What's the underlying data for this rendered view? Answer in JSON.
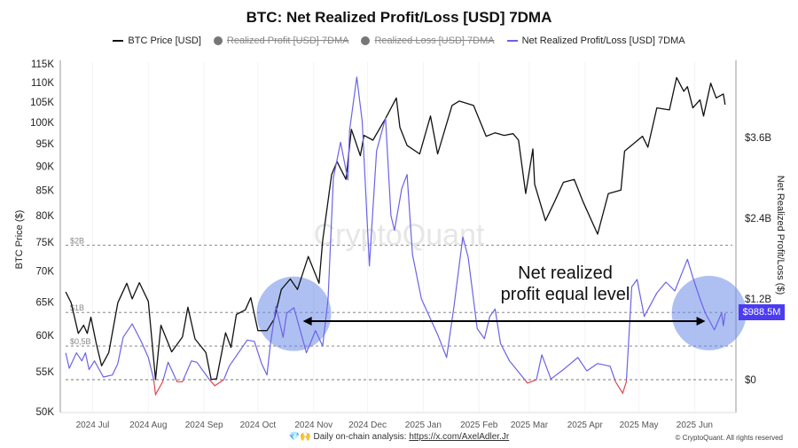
{
  "chart_data": {
    "type": "line",
    "title": "BTC: Net Realized Profit/Loss [USD] 7DMA",
    "legend": {
      "placement": "top",
      "items": [
        {
          "label": "BTC Price [USD]",
          "color": "#111111",
          "hidden": false
        },
        {
          "label": "Realized Profit [USD] 7DMA",
          "color": "#777777",
          "hidden": true
        },
        {
          "label": "Realized Loss [USD] 7DMA",
          "color": "#777777",
          "hidden": true
        },
        {
          "label": "Net Realized Profit/Loss [USD] 7DMA",
          "color": "#6b63e6",
          "hidden": false
        }
      ]
    },
    "left_axis": {
      "label": "BTC Price ($)",
      "scale": "log",
      "range": [
        50000,
        115000
      ],
      "ticks": [
        50000,
        55000,
        60000,
        65000,
        70000,
        75000,
        80000,
        85000,
        90000,
        95000,
        100000,
        105000,
        110000,
        115000
      ],
      "tick_labels": [
        "50K",
        "55K",
        "60K",
        "65K",
        "70K",
        "75K",
        "80K",
        "85K",
        "90K",
        "95K",
        "100K",
        "105K",
        "110K",
        "115K"
      ]
    },
    "right_axis": {
      "label": "Net Realized Profit/Loss ($)",
      "scale": "linear",
      "range": [
        -0.45,
        4.8
      ],
      "unit": "USD billions",
      "ticks": [
        0,
        1.2,
        2.4,
        3.6
      ],
      "tick_labels": [
        "$0",
        "$1.2B",
        "$2.4B",
        "$3.6B"
      ]
    },
    "x_axis": {
      "range": [
        "2024-06-13",
        "2025-06-24"
      ],
      "ticks": [
        "2024-07-01",
        "2024-08-01",
        "2024-09-01",
        "2024-10-01",
        "2024-11-01",
        "2024-12-01",
        "2025-01-01",
        "2025-02-01",
        "2025-03-01",
        "2025-04-01",
        "2025-05-01",
        "2025-06-01"
      ],
      "tick_labels": [
        "2024 Jul",
        "2024 Aug",
        "2024 Sep",
        "2024 Oct",
        "2024 Nov",
        "2024 Dec",
        "2025 Jan",
        "2025 Feb",
        "2025 Mar",
        "2025 Apr",
        "2025 May",
        "2025 Jun"
      ]
    },
    "reference_lines": [
      {
        "value": 2,
        "label": "$2B"
      },
      {
        "value": 1,
        "label": "$1B"
      },
      {
        "value": 0.5,
        "label": "$0,5B"
      },
      {
        "value": 0,
        "label": ""
      }
    ],
    "last_value_label": "$988.5M",
    "negative_color": "#e0454f",
    "highlight_color": "#6b8ce8",
    "highlights": [
      {
        "date": "2024-10-21",
        "value_b": 0.98
      },
      {
        "date": "2025-06-09",
        "value_b": 0.99
      }
    ],
    "annotation": {
      "line1": "Net realized",
      "line2": "profit equal level",
      "from": "2024-10-26",
      "to": "2025-06-07",
      "value_b": 1.0
    },
    "series": [
      {
        "name": "BTC Price [USD]",
        "axis": "left",
        "color": "#111111",
        "points": [
          [
            "2024-06-16",
            66600
          ],
          [
            "2024-06-19",
            64900
          ],
          [
            "2024-06-23",
            60300
          ],
          [
            "2024-06-26",
            61500
          ],
          [
            "2024-06-28",
            60300
          ],
          [
            "2024-06-30",
            62700
          ],
          [
            "2024-07-03",
            58900
          ],
          [
            "2024-07-06",
            55800
          ],
          [
            "2024-07-10",
            57600
          ],
          [
            "2024-07-15",
            64900
          ],
          [
            "2024-07-20",
            68000
          ],
          [
            "2024-07-23",
            65500
          ],
          [
            "2024-07-27",
            68100
          ],
          [
            "2024-08-01",
            65100
          ],
          [
            "2024-08-05",
            54000
          ],
          [
            "2024-08-08",
            61500
          ],
          [
            "2024-08-14",
            57700
          ],
          [
            "2024-08-20",
            59800
          ],
          [
            "2024-08-23",
            64200
          ],
          [
            "2024-08-27",
            59500
          ],
          [
            "2024-09-02",
            57600
          ],
          [
            "2024-09-05",
            54000
          ],
          [
            "2024-09-08",
            54100
          ],
          [
            "2024-09-13",
            60400
          ],
          [
            "2024-09-16",
            58300
          ],
          [
            "2024-09-19",
            63100
          ],
          [
            "2024-09-24",
            63800
          ],
          [
            "2024-09-27",
            65700
          ],
          [
            "2024-10-01",
            60700
          ],
          [
            "2024-10-06",
            60700
          ],
          [
            "2024-10-10",
            62400
          ],
          [
            "2024-10-14",
            67000
          ],
          [
            "2024-10-19",
            68700
          ],
          [
            "2024-10-23",
            67000
          ],
          [
            "2024-10-29",
            72500
          ],
          [
            "2024-11-04",
            68000
          ],
          [
            "2024-11-06",
            75300
          ],
          [
            "2024-11-11",
            88200
          ],
          [
            "2024-11-14",
            91000
          ],
          [
            "2024-11-19",
            87200
          ],
          [
            "2024-11-22",
            98300
          ],
          [
            "2024-11-27",
            92300
          ],
          [
            "2024-11-29",
            96900
          ],
          [
            "2024-12-04",
            95800
          ],
          [
            "2024-12-11",
            100900
          ],
          [
            "2024-12-17",
            106000
          ],
          [
            "2024-12-19",
            98800
          ],
          [
            "2024-12-23",
            94600
          ],
          [
            "2024-12-30",
            92700
          ],
          [
            "2025-01-05",
            101500
          ],
          [
            "2025-01-09",
            92700
          ],
          [
            "2025-01-17",
            104100
          ],
          [
            "2025-01-21",
            105200
          ],
          [
            "2025-01-29",
            104100
          ],
          [
            "2025-02-05",
            96700
          ],
          [
            "2025-02-10",
            97500
          ],
          [
            "2025-02-15",
            96900
          ],
          [
            "2025-02-20",
            97300
          ],
          [
            "2025-02-23",
            95800
          ],
          [
            "2025-02-27",
            84300
          ],
          [
            "2025-03-03",
            93800
          ],
          [
            "2025-03-04",
            86200
          ],
          [
            "2025-03-10",
            79000
          ],
          [
            "2025-03-15",
            82600
          ],
          [
            "2025-03-20",
            86600
          ],
          [
            "2025-03-26",
            87200
          ],
          [
            "2025-03-31",
            82600
          ],
          [
            "2025-04-08",
            76500
          ],
          [
            "2025-04-14",
            84300
          ],
          [
            "2025-04-21",
            85000
          ],
          [
            "2025-04-23",
            93300
          ],
          [
            "2025-05-03",
            96700
          ],
          [
            "2025-05-06",
            94200
          ],
          [
            "2025-05-11",
            103500
          ],
          [
            "2025-05-18",
            103000
          ],
          [
            "2025-05-22",
            111300
          ],
          [
            "2025-05-26",
            107700
          ],
          [
            "2025-05-28",
            108900
          ],
          [
            "2025-05-31",
            103500
          ],
          [
            "2025-06-04",
            105500
          ],
          [
            "2025-06-06",
            101500
          ],
          [
            "2025-06-10",
            109800
          ],
          [
            "2025-06-13",
            106000
          ],
          [
            "2025-06-17",
            107000
          ],
          [
            "2025-06-18",
            104300
          ]
        ]
      },
      {
        "name": "Net Realized Profit/Loss [USD] 7DMA",
        "axis": "right",
        "unit": "USD billions",
        "color": "#6b63e6",
        "points": [
          [
            "2024-06-16",
            0.4
          ],
          [
            "2024-06-18",
            0.17
          ],
          [
            "2024-06-22",
            0.4
          ],
          [
            "2024-06-25",
            0.28
          ],
          [
            "2024-06-27",
            0.4
          ],
          [
            "2024-06-29",
            0.15
          ],
          [
            "2024-07-02",
            0.28
          ],
          [
            "2024-07-07",
            0.04
          ],
          [
            "2024-07-12",
            0.07
          ],
          [
            "2024-07-15",
            0.24
          ],
          [
            "2024-07-18",
            0.63
          ],
          [
            "2024-07-23",
            0.83
          ],
          [
            "2024-07-28",
            0.57
          ],
          [
            "2024-08-01",
            0.33
          ],
          [
            "2024-08-04",
            0.0
          ],
          [
            "2024-08-05",
            -0.22
          ],
          [
            "2024-08-09",
            -0.03
          ],
          [
            "2024-08-12",
            0.26
          ],
          [
            "2024-08-17",
            -0.03
          ],
          [
            "2024-08-20",
            -0.03
          ],
          [
            "2024-08-25",
            0.28
          ],
          [
            "2024-08-28",
            0.26
          ],
          [
            "2024-09-04",
            0.0
          ],
          [
            "2024-09-07",
            -0.09
          ],
          [
            "2024-09-12",
            0.0
          ],
          [
            "2024-09-15",
            0.2
          ],
          [
            "2024-09-25",
            0.59
          ],
          [
            "2024-09-29",
            0.57
          ],
          [
            "2024-10-03",
            0.24
          ],
          [
            "2024-10-06",
            0.07
          ],
          [
            "2024-10-08",
            0.54
          ],
          [
            "2024-10-11",
            1.09
          ],
          [
            "2024-10-15",
            0.63
          ],
          [
            "2024-10-17",
            0.99
          ],
          [
            "2024-10-21",
            1.07
          ],
          [
            "2024-10-28",
            0.4
          ],
          [
            "2024-11-02",
            0.73
          ],
          [
            "2024-11-06",
            0.5
          ],
          [
            "2024-11-09",
            1.2
          ],
          [
            "2024-11-12",
            3.0
          ],
          [
            "2024-11-16",
            3.53
          ],
          [
            "2024-11-20",
            2.97
          ],
          [
            "2024-11-21",
            3.71
          ],
          [
            "2024-11-25",
            4.5
          ],
          [
            "2024-11-28",
            3.84
          ],
          [
            "2024-12-02",
            1.69
          ],
          [
            "2024-12-06",
            3.4
          ],
          [
            "2024-12-11",
            3.89
          ],
          [
            "2024-12-14",
            2.44
          ],
          [
            "2024-12-16",
            2.22
          ],
          [
            "2024-12-20",
            2.84
          ],
          [
            "2024-12-23",
            3.05
          ],
          [
            "2024-12-26",
            1.86
          ],
          [
            "2024-12-31",
            1.2
          ],
          [
            "2025-01-09",
            0.67
          ],
          [
            "2025-01-14",
            0.33
          ],
          [
            "2025-01-18",
            1.07
          ],
          [
            "2025-01-23",
            2.12
          ],
          [
            "2025-01-26",
            1.82
          ],
          [
            "2025-01-31",
            0.76
          ],
          [
            "2025-02-04",
            0.61
          ],
          [
            "2025-02-07",
            0.94
          ],
          [
            "2025-02-10",
            1.05
          ],
          [
            "2025-02-13",
            0.54
          ],
          [
            "2025-02-18",
            0.28
          ],
          [
            "2025-02-28",
            -0.05
          ],
          [
            "2025-03-05",
            0.0
          ],
          [
            "2025-03-08",
            0.37
          ],
          [
            "2025-03-13",
            0.01
          ],
          [
            "2025-03-20",
            0.15
          ],
          [
            "2025-03-28",
            0.33
          ],
          [
            "2025-04-02",
            0.13
          ],
          [
            "2025-04-08",
            0.24
          ],
          [
            "2025-04-15",
            0.2
          ],
          [
            "2025-04-18",
            -0.03
          ],
          [
            "2025-04-22",
            -0.2
          ],
          [
            "2025-04-24",
            -0.03
          ],
          [
            "2025-04-27",
            1.38
          ],
          [
            "2025-04-30",
            1.49
          ],
          [
            "2025-05-04",
            0.94
          ],
          [
            "2025-05-11",
            1.29
          ],
          [
            "2025-05-16",
            1.45
          ],
          [
            "2025-05-21",
            1.32
          ],
          [
            "2025-05-28",
            1.79
          ],
          [
            "2025-05-31",
            1.52
          ],
          [
            "2025-06-04",
            1.2
          ],
          [
            "2025-06-07",
            0.99
          ],
          [
            "2025-06-12",
            0.74
          ],
          [
            "2025-06-16",
            0.99
          ],
          [
            "2025-06-17",
            0.8
          ],
          [
            "2025-06-18",
            0.9885
          ]
        ]
      }
    ]
  },
  "watermark": "CryptoQuant",
  "footer": {
    "emoji": "💎🙌",
    "text": "Daily on-chain analysis: ",
    "link": "https://x.com/AxelAdler.Jr",
    "copyright": "© CryptoQuant. All rights reserved"
  }
}
